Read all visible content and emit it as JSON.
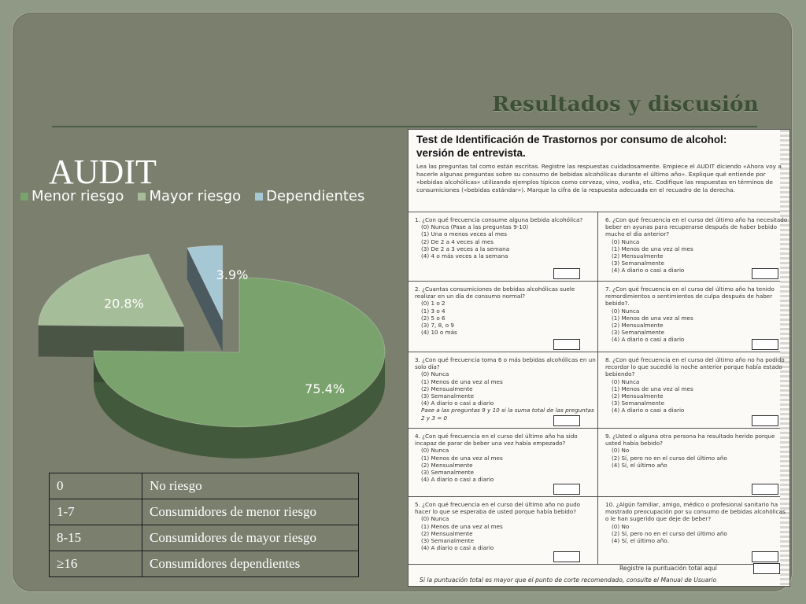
{
  "slide": {
    "title": "Resultados y discusión"
  },
  "chart_data": {
    "type": "pie",
    "title": "AUDIT",
    "categories": [
      "Menor riesgo",
      "Mayor riesgo",
      "Dependientes"
    ],
    "values": [
      75.4,
      20.8,
      3.9
    ],
    "labels": [
      "75.4%",
      "20.8%",
      "3.9%"
    ],
    "colors": [
      "#7aa26c",
      "#a6bd99",
      "#a6c8d4"
    ],
    "legend_position": "top"
  },
  "risk_table": {
    "rows": [
      {
        "score": "0",
        "category": "No riesgo"
      },
      {
        "score": "1-7",
        "category": "Consumidores de menor riesgo"
      },
      {
        "score": "8-15",
        "category": "Consumidores de mayor riesgo"
      },
      {
        "score": "≥16",
        "category": "Consumidores dependientes"
      }
    ]
  },
  "document": {
    "title": "Test de Identificación de Trastornos por consumo de alcohol: versión de entrevista.",
    "intro": "Lea las preguntas tal como están escritas. Registre las respuestas cuidadosamente. Empiece el AUDIT diciendo «Ahora voy a hacerle algunas preguntas sobre su consumo de bebidas alcohólicas durante el último año». Explique qué entiende por «bebidas alcohólicas» utilizando ejemplos típicos como cerveza, vino, vodka, etc. Codifique las respuestas en términos de consumiciones («bebidas estándar»). Marque la cifra de la respuesta adecuada en el recuadro de la derecha.",
    "questions": [
      {
        "text": "1. ¿Con qué frecuencia consume alguna bebida alcohólica?",
        "options": [
          "(0) Nunca (Pase a las preguntas 9-10)",
          "(1) Una o menos veces al mes",
          "(2) De 2 a 4 veces al mes",
          "(3) De 2 a 3 veces a la semana",
          "(4) 4 o más veces a la semana"
        ]
      },
      {
        "text": "6. ¿Con qué frecuencia en el curso del último año ha necesitado beber en ayunas para recuperarse después de haber bebido mucho el día anterior?",
        "options": [
          "(0) Nunca",
          "(1) Menos de una vez al mes",
          "(2) Mensualmente",
          "(3) Semanalmente",
          "(4) A diario o casi a diario"
        ]
      },
      {
        "text": "2. ¿Cuantas consumiciones de bebidas alcohólicas suele realizar en un día de consumo normal?",
        "options": [
          "(0) 1 o 2",
          "(1) 3 o 4",
          "(2) 5 o 6",
          "(3) 7, 8, o 9",
          "(4) 10 o más"
        ]
      },
      {
        "text": "7. ¿Con qué frecuencia en el curso del último año ha tenido remordimientos o sentimientos de culpa después de haber bebido?.",
        "options": [
          "(0) Nunca",
          "(1) Menos de una vez al mes",
          "(2) Mensualmente",
          "(3) Semanalmente",
          "(4) A diario o casi a diario"
        ]
      },
      {
        "text": "3. ¿Con qué frecuencia toma 6 o más bebidas alcohólicas en un solo día?",
        "options": [
          "(0) Nunca",
          "(1) Menos de una vez al mes",
          "(2) Mensualmente",
          "(3) Semanalmente",
          "(4) A diario o casi a diario",
          "Pase a las preguntas 9 y 10 si la suma total de las preguntas 2 y 3 = 0"
        ]
      },
      {
        "text": "8. ¿Con qué frecuencia en el curso del último año no ha podido recordar lo que sucedió la noche anterior porque había estado bebiendo?",
        "options": [
          "(0) Nunca",
          "(1) Menos de una vez al mes",
          "(2) Mensualmente",
          "(3) Semanalmente",
          "(4) A diario o casi a diario"
        ]
      },
      {
        "text": "4. ¿Con qué frecuencia en el curso del último año ha sido incapaz de parar de beber una vez había empezado?",
        "options": [
          "(0) Nunca",
          "(1) Menos de una vez al mes",
          "(2) Mensualmente",
          "(3) Semanalmente",
          "(4) A diario o casi a diario"
        ]
      },
      {
        "text": "9. ¿Usted o alguna otra persona ha resultado herido porque usted había bebido?",
        "options": [
          "(0) No",
          "(2) Sí, pero no en el curso del último año",
          "(4) Sí, el último año"
        ]
      },
      {
        "text": "5. ¿Con qué frecuencia en el curso del último año no pudo hacer lo que se esperaba de usted porque había bebido?",
        "options": [
          "(0) Nunca",
          "(1) Menos de una vez al mes",
          "(2) Mensualmente",
          "(3) Semanalmente",
          "(4) A diario o casi a diario"
        ]
      },
      {
        "text": "10. ¿Algún familiar, amigo, médico o profesional sanitario ha mostrado preocupación por su consumo de bebidas alcohólicas o le han sugerido que deje de beber?",
        "options": [
          "(0) No",
          "(2) Sí, pero no en el curso del último año",
          "(4) Sí, el último año."
        ]
      }
    ],
    "footer_total": "Registre la puntuación total aquí",
    "footer_note": "Si la puntuación total es mayor que el punto de corte recomendado, consulte el Manual de Usuario"
  }
}
